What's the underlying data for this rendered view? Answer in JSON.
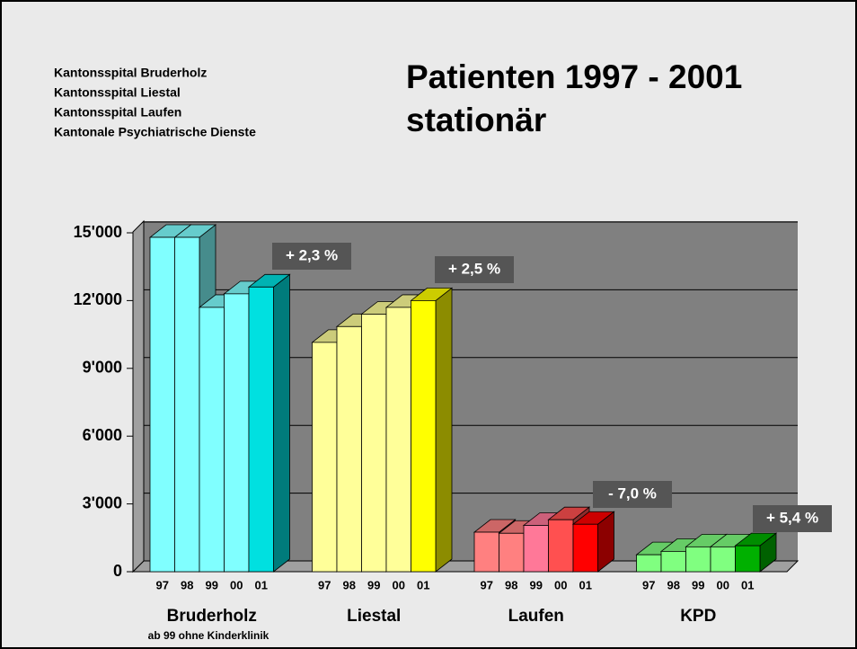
{
  "chart_data": {
    "type": "bar3d",
    "header_lines": [
      "Kantonsspital Bruderholz",
      "Kantonsspital Liestal",
      "Kantonsspital Laufen",
      "Kantonale Psychiatrische Dienste"
    ],
    "title": "Patienten 1997 - 2001",
    "subtitle": "stationär",
    "categories": [
      "Bruderholz",
      "Liestal",
      "Laufen",
      "KPD"
    ],
    "footnote": "ab 99 ohne Kinderklinik",
    "change_labels": [
      "+ 2,3 %",
      "+ 2,5 %",
      "- 7,0 %",
      "+ 5,4 %"
    ],
    "series": [
      {
        "name": "97",
        "colors": [
          "#80ffff",
          "#ffff99",
          "#ff8080",
          "#80ff80"
        ],
        "values": [
          14800,
          10150,
          1750,
          750
        ]
      },
      {
        "name": "98",
        "colors": [
          "#80ffff",
          "#ffff99",
          "#ff8080",
          "#80ff80"
        ],
        "values": [
          14800,
          10850,
          1700,
          900
        ]
      },
      {
        "name": "99",
        "colors": [
          "#80ffff",
          "#ffff99",
          "#ff7898",
          "#80ff80"
        ],
        "values": [
          11700,
          11400,
          2050,
          1100
        ]
      },
      {
        "name": "00",
        "colors": [
          "#80ffff",
          "#ffff99",
          "#ff5050",
          "#80ff80"
        ],
        "values": [
          12300,
          11700,
          2300,
          1100
        ]
      },
      {
        "name": "01",
        "colors": [
          "#00e0e0",
          "#ffff00",
          "#ff0000",
          "#00b000"
        ],
        "values": [
          12600,
          12000,
          2100,
          1150
        ]
      }
    ],
    "ylim": [
      0,
      15000
    ],
    "yticks": [
      0,
      {
        "value": 3000,
        "label": "3'000"
      },
      {
        "value": 6000,
        "label": "6'000"
      },
      {
        "value": 9000,
        "label": "9'000"
      },
      {
        "value": 12000,
        "label": "12'000"
      },
      {
        "value": 15000,
        "label": "15'000"
      }
    ],
    "grid": true
  }
}
